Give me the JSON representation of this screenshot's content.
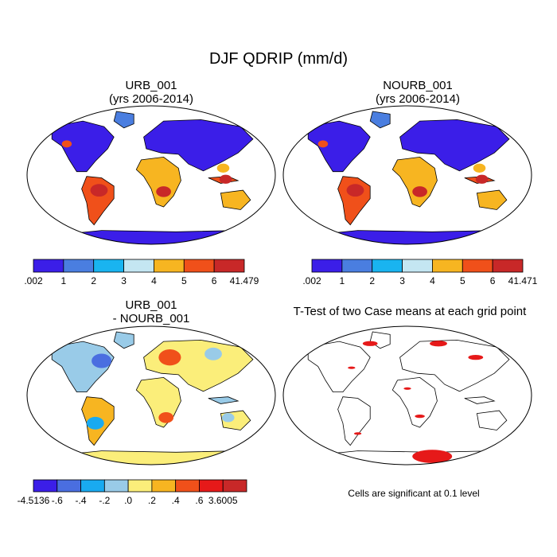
{
  "figure": {
    "title": "DJF QDRIP (mm/d)",
    "note": "Cells are significant at 0.1 level"
  },
  "chart_data": [
    {
      "type": "heatmap",
      "title": "URB_001",
      "subtitle": "(yrs 2006-2014)",
      "colorbar": {
        "levels": [
          ".002",
          "1",
          "2",
          "3",
          "4",
          "5",
          "6",
          "41.479"
        ],
        "colors": [
          "#3b1ee8",
          "#4a7ee0",
          "#19b4f0",
          "#c4e6f2",
          "#f7b521",
          "#f0501a",
          "#c82828"
        ],
        "min": 0.002,
        "max": 41.479
      }
    },
    {
      "type": "heatmap",
      "title": "NOURB_001",
      "subtitle": "(yrs 2006-2014)",
      "colorbar": {
        "levels": [
          ".002",
          "1",
          "2",
          "3",
          "4",
          "5",
          "6",
          "41.471"
        ],
        "colors": [
          "#3b1ee8",
          "#4a7ee0",
          "#19b4f0",
          "#c4e6f2",
          "#f7b521",
          "#f0501a",
          "#c82828"
        ],
        "min": 0.002,
        "max": 41.471
      }
    },
    {
      "type": "heatmap",
      "title": "URB_001",
      "subtitle": "- NOURB_001",
      "colorbar": {
        "levels": [
          "-4.5136",
          "-.6",
          "-.4",
          "-.2",
          ".0",
          ".2",
          ".4",
          ".6",
          "3.6005"
        ],
        "colors": [
          "#3b1ee8",
          "#4a6ee0",
          "#19aaf0",
          "#99cbe8",
          "#fbee7a",
          "#f7b521",
          "#f0501a",
          "#e61919",
          "#c82828"
        ],
        "min": -4.5136,
        "max": 3.6005
      }
    },
    {
      "type": "heatmap",
      "title": "T-Test of two Case means at each grid point",
      "significance_color": "#e61919"
    }
  ]
}
